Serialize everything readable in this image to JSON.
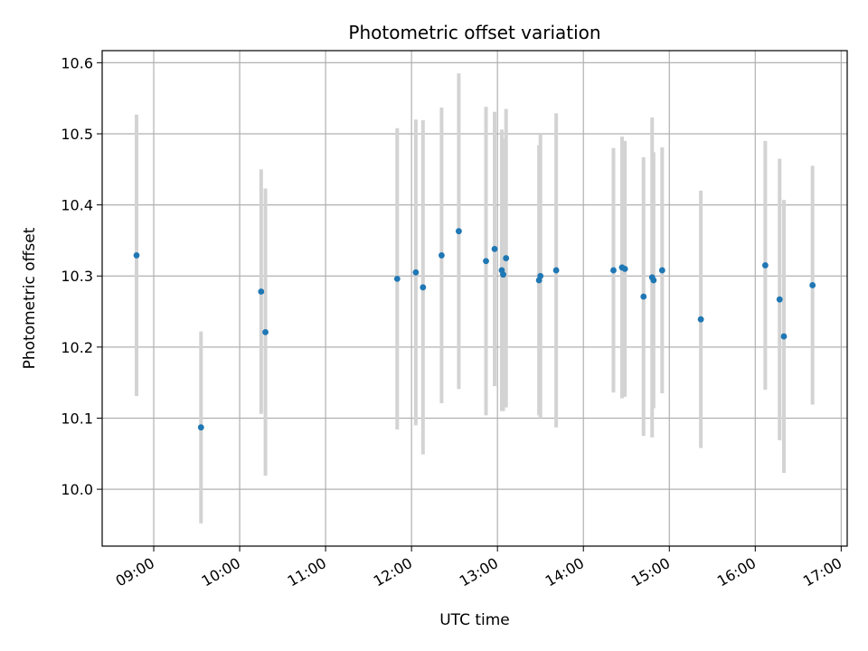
{
  "chart_data": {
    "type": "scatter",
    "title": "Photometric offset variation",
    "xlabel": "UTC time",
    "ylabel": "Photometric offset",
    "grid": true,
    "x_range_hours": [
      8.4,
      17.07
    ],
    "ylim": [
      9.92,
      10.617
    ],
    "x_ticks": [
      {
        "label": "09:00",
        "hour": 9
      },
      {
        "label": "10:00",
        "hour": 10
      },
      {
        "label": "11:00",
        "hour": 11
      },
      {
        "label": "12:00",
        "hour": 12
      },
      {
        "label": "13:00",
        "hour": 13
      },
      {
        "label": "14:00",
        "hour": 14
      },
      {
        "label": "15:00",
        "hour": 15
      },
      {
        "label": "16:00",
        "hour": 16
      },
      {
        "label": "17:00",
        "hour": 17
      }
    ],
    "y_ticks": [
      {
        "label": "10.0",
        "value": 10.0
      },
      {
        "label": "10.1",
        "value": 10.1
      },
      {
        "label": "10.2",
        "value": 10.2
      },
      {
        "label": "10.3",
        "value": 10.3
      },
      {
        "label": "10.4",
        "value": 10.4
      },
      {
        "label": "10.5",
        "value": 10.5
      },
      {
        "label": "10.6",
        "value": 10.6
      }
    ],
    "colors": {
      "points": "#1f77b4",
      "errorbars": "#d3d3d3",
      "grid": "#b0b0b0"
    },
    "points": [
      {
        "time": "08:48",
        "y": 10.329,
        "err": 0.198
      },
      {
        "time": "09:33",
        "y": 10.087,
        "err": 0.135
      },
      {
        "time": "10:15",
        "y": 10.278,
        "err": 0.172
      },
      {
        "time": "10:18",
        "y": 10.221,
        "err": 0.202
      },
      {
        "time": "11:50",
        "y": 10.296,
        "err": 0.212
      },
      {
        "time": "12:03",
        "y": 10.305,
        "err": 0.215
      },
      {
        "time": "12:08",
        "y": 10.284,
        "err": 0.235
      },
      {
        "time": "12:21",
        "y": 10.329,
        "err": 0.208
      },
      {
        "time": "12:33",
        "y": 10.363,
        "err": 0.222
      },
      {
        "time": "12:52",
        "y": 10.321,
        "err": 0.217
      },
      {
        "time": "12:58",
        "y": 10.338,
        "err": 0.193
      },
      {
        "time": "13:03",
        "y": 10.308,
        "err": 0.198
      },
      {
        "time": "13:04",
        "y": 10.302,
        "err": 0.192
      },
      {
        "time": "13:06",
        "y": 10.325,
        "err": 0.21
      },
      {
        "time": "13:29",
        "y": 10.294,
        "err": 0.19
      },
      {
        "time": "13:30",
        "y": 10.3,
        "err": 0.2
      },
      {
        "time": "13:41",
        "y": 10.308,
        "err": 0.221
      },
      {
        "time": "14:21",
        "y": 10.308,
        "err": 0.172
      },
      {
        "time": "14:27",
        "y": 10.312,
        "err": 0.184
      },
      {
        "time": "14:29",
        "y": 10.31,
        "err": 0.18
      },
      {
        "time": "14:42",
        "y": 10.271,
        "err": 0.196
      },
      {
        "time": "14:48",
        "y": 10.298,
        "err": 0.225
      },
      {
        "time": "14:49",
        "y": 10.294,
        "err": 0.18
      },
      {
        "time": "14:55",
        "y": 10.308,
        "err": 0.173
      },
      {
        "time": "15:22",
        "y": 10.239,
        "err": 0.181
      },
      {
        "time": "16:07",
        "y": 10.315,
        "err": 0.175
      },
      {
        "time": "16:17",
        "y": 10.267,
        "err": 0.198
      },
      {
        "time": "16:20",
        "y": 10.215,
        "err": 0.192
      },
      {
        "time": "16:40",
        "y": 10.287,
        "err": 0.168
      }
    ]
  }
}
